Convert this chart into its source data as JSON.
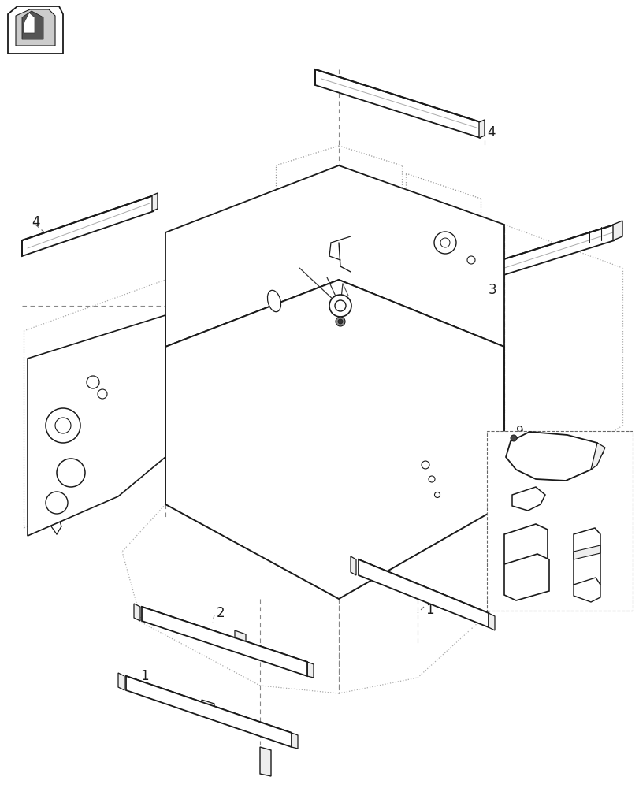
{
  "bg_color": "#ffffff",
  "lc": "#1a1a1a",
  "dc": "#666666",
  "dotc": "#888888",
  "lw_solid": 1.3,
  "lw_thin": 0.8,
  "lw_dash": 0.8,
  "fill_light": "#f8f8f8",
  "fill_mid": "#eeeeee",
  "fill_dark": "#d8d8d8"
}
